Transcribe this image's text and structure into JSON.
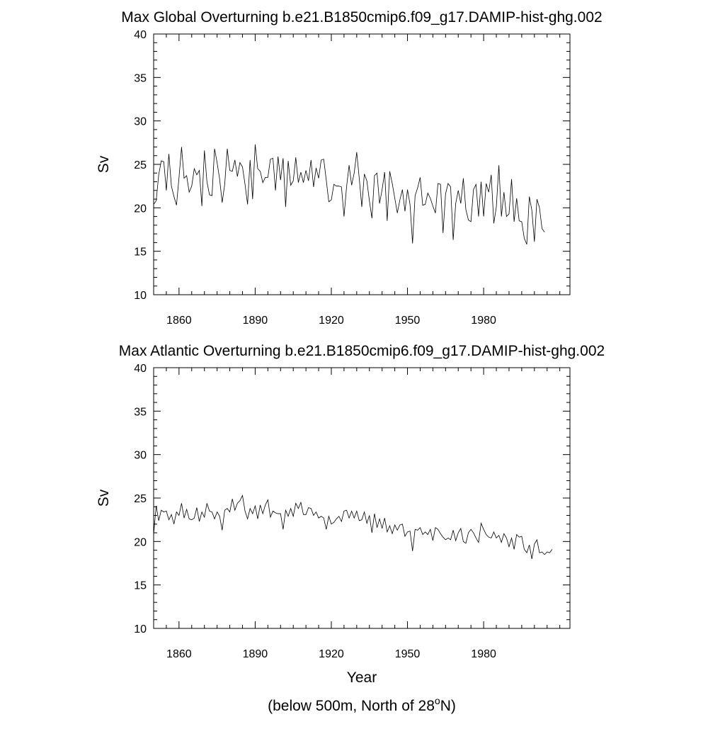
{
  "chart_data": [
    {
      "type": "line",
      "title": "Max Global Overturning b.e21.B1850cmip6.f09_g17.DAMIP-hist-ghg.002",
      "xlabel": "",
      "ylabel": "Sv",
      "xlim": [
        1850,
        2014
      ],
      "ylim": [
        10,
        40
      ],
      "x_ticks": [
        1860,
        1890,
        1920,
        1950,
        1980
      ],
      "y_ticks": [
        10,
        15,
        20,
        25,
        30,
        35,
        40
      ],
      "grid": false,
      "x_start": 1850,
      "values": [
        20.4,
        20.8,
        23.8,
        25.4,
        25.3,
        22.0,
        26.2,
        22.5,
        21.3,
        20.3,
        23.5,
        27.0,
        23.4,
        23.7,
        21.8,
        22.5,
        24.5,
        23.8,
        24.3,
        20.2,
        26.6,
        23.0,
        21.5,
        21.4,
        26.8,
        25.2,
        23.3,
        20.6,
        22.7,
        26.8,
        24.3,
        24.2,
        25.5,
        23.6,
        25.2,
        24.7,
        22.7,
        20.4,
        25.5,
        21.0,
        27.3,
        24.5,
        24.2,
        22.9,
        23.5,
        23.5,
        25.6,
        25.7,
        22.0,
        25.9,
        23.2,
        25.7,
        20.1,
        25.4,
        22.6,
        23.1,
        25.8,
        22.9,
        24.1,
        22.9,
        24.3,
        23.1,
        25.5,
        22.4,
        24.6,
        23.4,
        25.5,
        25.6,
        23.2,
        20.7,
        20.9,
        22.7,
        22.5,
        22.5,
        22.4,
        19.0,
        22.4,
        24.9,
        22.6,
        24.0,
        26.4,
        23.4,
        20.1,
        23.9,
        23.1,
        20.8,
        18.8,
        23.7,
        24.0,
        20.5,
        22.1,
        24.1,
        18.5,
        24.2,
        22.8,
        21.1,
        19.4,
        20.9,
        22.1,
        19.6,
        22.1,
        20.4,
        15.9,
        21.4,
        22.3,
        23.5,
        20.3,
        20.4,
        21.7,
        21.1,
        20.2,
        19.4,
        22.8,
        22.7,
        17.1,
        21.6,
        22.8,
        22.4,
        16.3,
        20.5,
        22.0,
        20.5,
        23.4,
        19.8,
        18.6,
        18.4,
        22.1,
        22.7,
        19.0,
        23.0,
        19.0,
        22.8,
        21.8,
        23.8,
        18.2,
        20.1,
        24.9,
        19.0,
        21.8,
        19.0,
        19.3,
        23.3,
        18.4,
        21.1,
        18.5,
        18.4,
        16.5,
        15.8,
        21.3,
        19.7,
        16.1,
        21.0,
        20.0,
        17.6,
        17.2
      ]
    },
    {
      "type": "line",
      "title": "Max Atlantic Overturning b.e21.B1850cmip6.f09_g17.DAMIP-hist-ghg.002",
      "xlabel": "Year",
      "ylabel": "Sv",
      "subtitle_pre": "(below 500m, North of 28",
      "subtitle_sup": "o",
      "subtitle_post": "N)",
      "xlim": [
        1850,
        2014
      ],
      "ylim": [
        10,
        40
      ],
      "x_ticks": [
        1860,
        1890,
        1920,
        1950,
        1980
      ],
      "y_ticks": [
        10,
        15,
        20,
        25,
        30,
        35,
        40
      ],
      "grid": false,
      "x_start": 1850,
      "values": [
        20.8,
        24.1,
        22.4,
        23.6,
        23.4,
        23.5,
        22.5,
        23.1,
        22.0,
        23.4,
        23.0,
        24.4,
        22.7,
        23.7,
        22.6,
        22.5,
        22.7,
        23.9,
        22.3,
        23.4,
        22.8,
        24.4,
        23.5,
        23.4,
        22.6,
        23.4,
        22.9,
        21.3,
        23.6,
        23.8,
        23.4,
        24.9,
        23.6,
        24.4,
        24.7,
        25.3,
        23.5,
        22.6,
        23.8,
        23.2,
        24.1,
        22.6,
        24.2,
        23.2,
        24.2,
        24.8,
        22.8,
        23.5,
        23.3,
        23.2,
        23.2,
        21.4,
        23.6,
        22.9,
        23.8,
        22.9,
        24.4,
        23.8,
        24.5,
        23.1,
        23.1,
        23.9,
        23.8,
        23.0,
        23.4,
        22.7,
        22.9,
        22.7,
        21.4,
        22.9,
        22.0,
        22.2,
        22.6,
        22.9,
        22.3,
        23.5,
        23.6,
        22.7,
        23.5,
        22.7,
        23.5,
        22.4,
        22.5,
        23.4,
        22.1,
        23.0,
        21.0,
        23.2,
        21.6,
        22.6,
        21.5,
        22.7,
        21.1,
        21.8,
        20.9,
        21.9,
        21.3,
        21.9,
        22.0,
        20.6,
        21.1,
        21.2,
        18.9,
        21.4,
        21.3,
        21.6,
        20.8,
        21.1,
        20.8,
        21.4,
        20.1,
        21.6,
        21.4,
        20.9,
        20.5,
        20.2,
        20.4,
        20.2,
        21.3,
        20.1,
        21.0,
        21.5,
        20.0,
        19.8,
        21.0,
        21.4,
        21.0,
        20.4,
        19.9,
        22.1,
        21.4,
        20.8,
        20.5,
        20.4,
        21.1,
        20.4,
        20.7,
        19.9,
        20.9,
        20.4,
        19.4,
        20.4,
        19.1,
        20.8,
        20.5,
        20.6,
        19.1,
        18.7,
        19.6,
        18.0,
        19.7,
        20.2,
        18.7,
        18.8,
        18.5,
        18.8,
        18.7,
        19.1
      ]
    }
  ]
}
